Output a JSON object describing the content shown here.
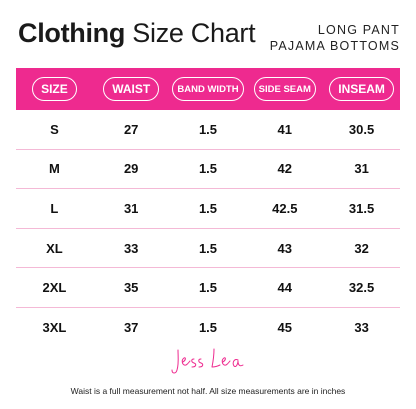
{
  "header": {
    "title_bold": "Clothing",
    "title_light": "Size Chart",
    "subtitle_line1": "LONG PANT",
    "subtitle_line2": "PAJAMA BOTTOMS"
  },
  "table": {
    "columns": [
      "SIZE",
      "WAIST",
      "BAND WIDTH",
      "SIDE SEAM",
      "INSEAM"
    ],
    "rows": [
      [
        "S",
        "27",
        "1.5",
        "41",
        "30.5"
      ],
      [
        "M",
        "29",
        "1.5",
        "42",
        "31"
      ],
      [
        "L",
        "31",
        "1.5",
        "42.5",
        "31.5"
      ],
      [
        "XL",
        "33",
        "1.5",
        "43",
        "32"
      ],
      [
        "2XL",
        "35",
        "1.5",
        "44",
        "32.5"
      ],
      [
        "3XL",
        "37",
        "1.5",
        "45",
        "33"
      ]
    ]
  },
  "signature": "Jess Lea",
  "footnote": "Waist is a full measurement not half. All size measurements are in inches",
  "colors": {
    "accent": "#ee2a8f",
    "row_divider": "#f4b9d6",
    "text": "#111111"
  }
}
